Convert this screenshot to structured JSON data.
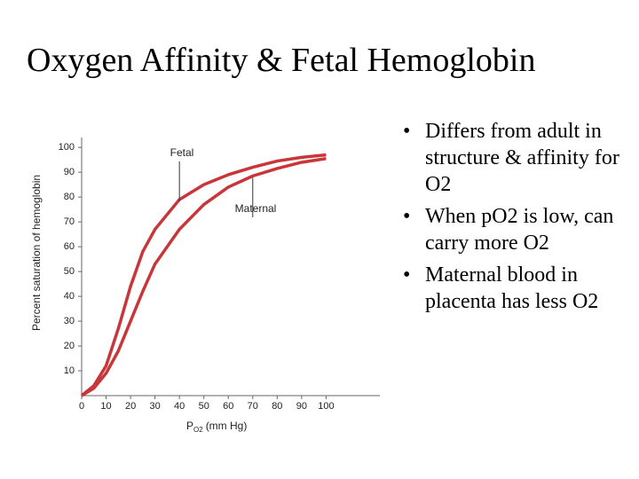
{
  "title": "Oxygen Affinity & Fetal Hemoglobin",
  "bullets": [
    "Differs from adult in structure & affinity for O2",
    "When pO2 is low, can carry more O2",
    "Maternal blood in placenta has less O2"
  ],
  "chart_data": {
    "type": "line",
    "y_label": "Percent saturation of hemoglobin",
    "x_label_main": "P",
    "x_label_sub": "O2",
    "x_label_unit": "(mm Hg)",
    "x": [
      0,
      5,
      10,
      15,
      20,
      25,
      30,
      40,
      50,
      60,
      70,
      80,
      90,
      100
    ],
    "series": [
      {
        "name": "Fetal",
        "color": "#c8363a",
        "values": [
          0,
          4,
          12,
          27,
          44,
          58,
          67,
          79,
          85,
          89,
          92,
          94.5,
          96,
          97
        ]
      },
      {
        "name": "Maternal",
        "color": "#c8363a",
        "values": [
          0,
          3,
          9,
          18,
          30,
          42,
          53,
          67,
          77,
          84,
          88.5,
          91.5,
          94,
          95.5
        ]
      }
    ],
    "xlim": [
      0,
      122
    ],
    "ylim": [
      0,
      104
    ],
    "xticks": [
      0,
      10,
      20,
      30,
      40,
      50,
      60,
      70,
      80,
      90,
      100
    ],
    "yticks": [
      10,
      20,
      30,
      40,
      50,
      60,
      70,
      80,
      90,
      100
    ]
  }
}
